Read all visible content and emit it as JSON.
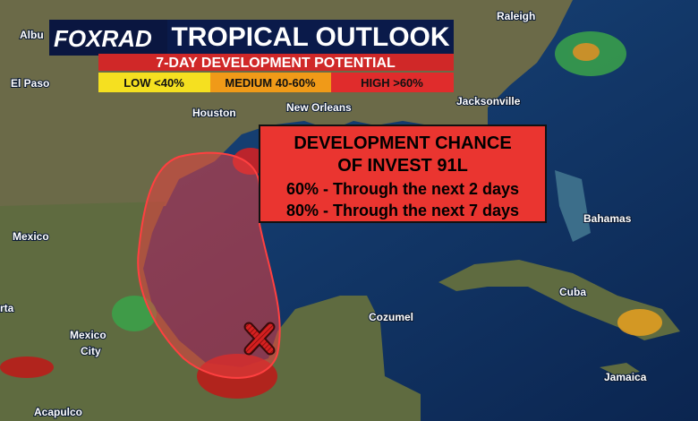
{
  "header": {
    "logo": "FOXRAD",
    "title": "TROPICAL OUTLOOK",
    "subtitle": "7-DAY DEVELOPMENT POTENTIAL",
    "legend": [
      {
        "label": "LOW <40%"
      },
      {
        "label": "MEDIUM 40-60%"
      },
      {
        "label": "HIGH >60%"
      }
    ]
  },
  "callout": {
    "lines": [
      "DEVELOPMENT CHANCE",
      "OF INVEST 91L",
      "60% - Through the next 2 days",
      "80% - Through the next 7 days"
    ]
  },
  "places": [
    "Albu",
    "El Paso",
    "Houston",
    "New Orleans",
    "Jacksonville",
    "Raleigh",
    "Mexico",
    "Mexico",
    "City",
    "Bahamas",
    "Cuba",
    "Cozumel",
    "Jamaica",
    "Acapulco",
    "rta"
  ]
}
